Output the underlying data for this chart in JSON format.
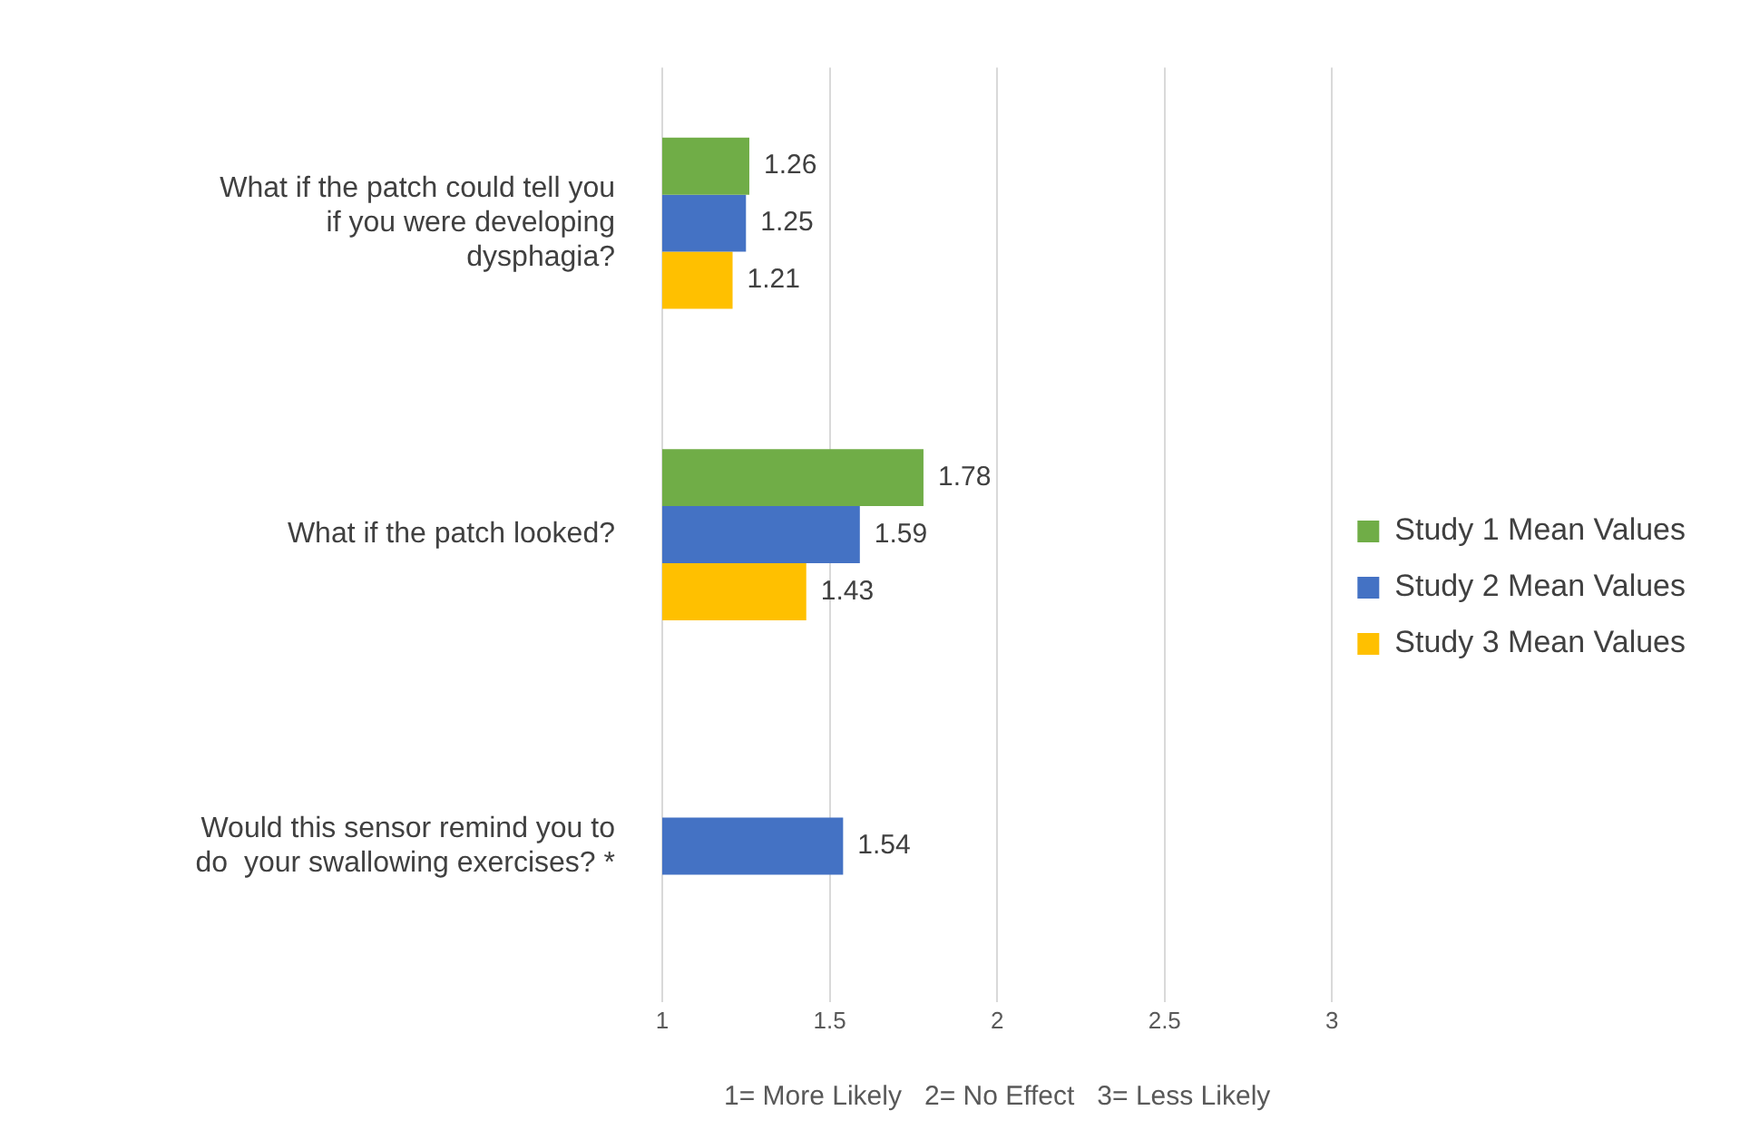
{
  "chart_data": {
    "type": "bar",
    "orientation": "horizontal",
    "categories": [
      "What if the patch could tell you if you were developing dysphagia?",
      "What if the patch looked?",
      "Would this sensor remind you to do  your swallowing exercises? *"
    ],
    "series": [
      {
        "name": "Study 1 Mean Values",
        "color": "#70ad47",
        "values": [
          1.26,
          1.78,
          null
        ]
      },
      {
        "name": "Study 2 Mean Values",
        "color": "#4472c4",
        "values": [
          1.25,
          1.59,
          1.54
        ]
      },
      {
        "name": "Study 3 Mean Values",
        "color": "#ffc000",
        "values": [
          1.21,
          1.43,
          null
        ]
      }
    ],
    "xlim": [
      1,
      3
    ],
    "xticks": [
      1,
      1.5,
      2,
      2.5,
      3
    ],
    "grid": "x",
    "legend": "right",
    "data_labels": true,
    "xlabel": "1= More Likely   2= No Effect   3= Less Likely"
  }
}
